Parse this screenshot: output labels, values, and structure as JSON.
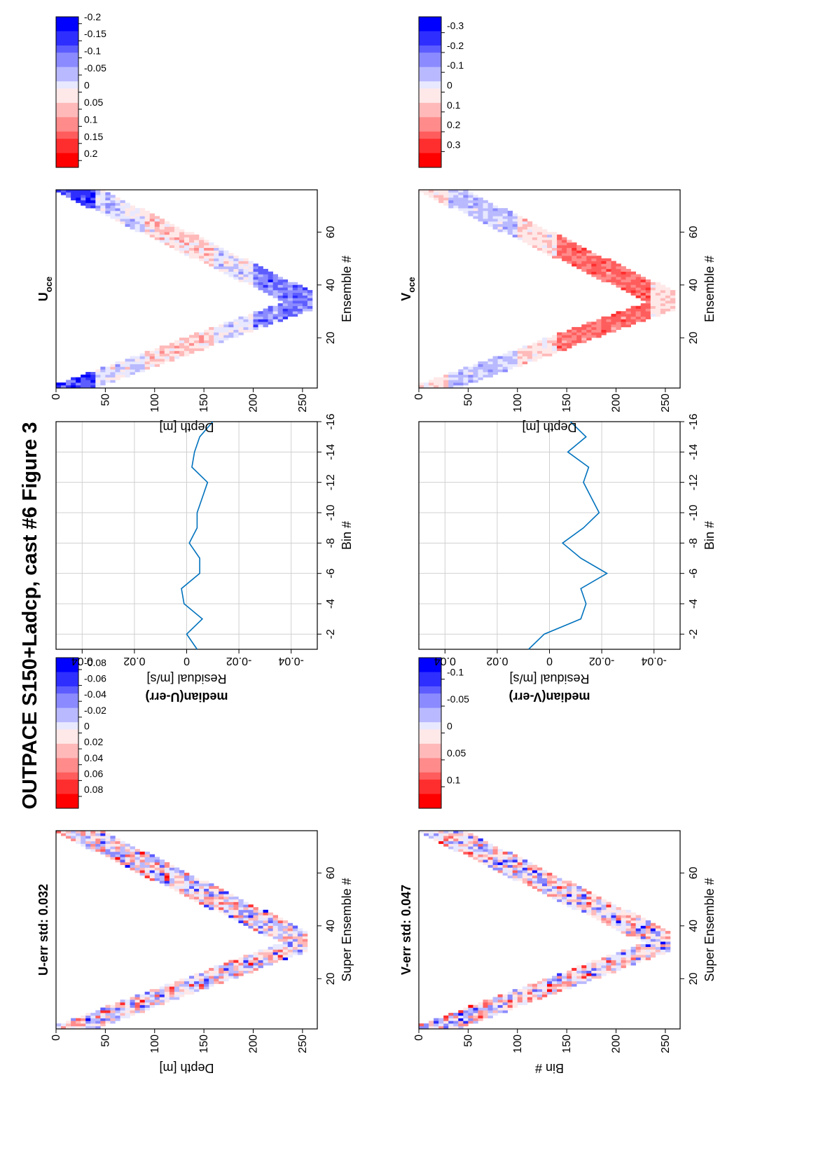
{
  "figure_title": "OUTPACE S150+Ladcp, cast #6  Figure 3",
  "chart_data": [
    {
      "id": "u_err",
      "type": "heatmap",
      "title": "U-err std: 0.032",
      "xlabel": "Super Ensemble #",
      "ylabel": "Depth [m]",
      "xlim": [
        1,
        76
      ],
      "ylim": [
        0,
        265
      ],
      "xticks": [
        "20",
        "40",
        "60"
      ],
      "yticks": [
        "0",
        "50",
        "100",
        "150",
        "200",
        "250"
      ],
      "colormap": [
        "#0000ff",
        "#ffffff",
        "#ff0000"
      ],
      "colorbar": {
        "min": -0.095,
        "max": 0.095,
        "ticks": [
          "0.08",
          "0.06",
          "0.04",
          "0.02",
          "0",
          "-0.02",
          "-0.04",
          "-0.06",
          "-0.08"
        ]
      },
      "profile": {
        "turn_ensemble": 33,
        "max_depth": 255,
        "band_width_m": 45
      },
      "pattern": "noise",
      "std": 0.032,
      "seed": 11
    },
    {
      "id": "v_err",
      "type": "heatmap",
      "title": "V-err std: 0.047",
      "xlabel": "Super Ensemble #",
      "ylabel": "Bin #",
      "xlim": [
        1,
        76
      ],
      "ylim": [
        0,
        265
      ],
      "xticks": [
        "20",
        "40",
        "60"
      ],
      "yticks": [
        "0",
        "50",
        "100",
        "150",
        "200",
        "250"
      ],
      "colormap": [
        "#0000ff",
        "#ffffff",
        "#ff0000"
      ],
      "colorbar": {
        "min": -0.14,
        "max": 0.14,
        "ticks": [
          "0.1",
          "0.05",
          "0",
          "-0.05",
          "-0.1"
        ]
      },
      "profile": {
        "turn_ensemble": 33,
        "max_depth": 255,
        "band_width_m": 45
      },
      "pattern": "noise",
      "std": 0.047,
      "seed": 23
    },
    {
      "id": "u_med",
      "type": "line",
      "title": "median(U-err)",
      "xlabel": "Residual [m/s]",
      "ylabel": "Bin #",
      "xlim": [
        -0.05,
        0.05
      ],
      "ylim": [
        -16,
        -1
      ],
      "xticks": [
        "-0.04",
        "-0.02",
        "0",
        "0.02",
        "0.04"
      ],
      "yticks": [
        "-2",
        "-4",
        "-6",
        "-8",
        "-10",
        "-12",
        "-14",
        "-16"
      ],
      "color": "#0072bd",
      "bins": [
        -1,
        -2,
        -3,
        -4,
        -5,
        -6,
        -7,
        -8,
        -9,
        -10,
        -11,
        -12,
        -13,
        -14,
        -15,
        -16
      ],
      "values": [
        -0.004,
        0.0,
        -0.006,
        0.001,
        0.002,
        -0.005,
        -0.005,
        -0.001,
        -0.004,
        -0.004,
        -0.006,
        -0.008,
        -0.002,
        -0.003,
        -0.005,
        -0.01
      ]
    },
    {
      "id": "v_med",
      "type": "line",
      "title": "median(V-err)",
      "xlabel": "Residual [m/s]",
      "ylabel": "Bin #",
      "xlim": [
        -0.05,
        0.05
      ],
      "ylim": [
        -16,
        -1
      ],
      "xticks": [
        "-0.04",
        "-0.02",
        "0",
        "0.02",
        "0.04"
      ],
      "yticks": [
        "-2",
        "-4",
        "-6",
        "-8",
        "-10",
        "-12",
        "-14",
        "-16"
      ],
      "color": "#0072bd",
      "bins": [
        -1,
        -2,
        -3,
        -4,
        -5,
        -6,
        -7,
        -8,
        -9,
        -10,
        -11,
        -12,
        -13,
        -14,
        -15,
        -16
      ],
      "values": [
        0.008,
        0.002,
        -0.012,
        -0.014,
        -0.012,
        -0.022,
        -0.012,
        -0.005,
        -0.013,
        -0.019,
        -0.016,
        -0.013,
        -0.015,
        -0.007,
        -0.014,
        -0.008
      ]
    },
    {
      "id": "u_oce",
      "type": "heatmap",
      "title": "U",
      "title_sub": "oce",
      "xlabel": "Ensemble #",
      "ylabel": "Depth [m]",
      "xlim": [
        1,
        76
      ],
      "ylim": [
        0,
        265
      ],
      "xticks": [
        "20",
        "40",
        "60"
      ],
      "yticks": [
        "0",
        "50",
        "100",
        "150",
        "200",
        "250"
      ],
      "colormap": [
        "#0000ff",
        "#ffffff",
        "#ff0000"
      ],
      "colorbar": {
        "min": -0.22,
        "max": 0.22,
        "ticks": [
          "0.2",
          "0.15",
          "0.1",
          "0.05",
          "0",
          "-0.05",
          "-0.1",
          "-0.15",
          "-0.2"
        ]
      },
      "profile": {
        "turn_ensemble": 33,
        "max_depth": 258,
        "band_width_m": 45
      },
      "pattern": "u_oce",
      "std": 0.03,
      "seed": 37
    },
    {
      "id": "v_oce",
      "type": "heatmap",
      "title": "V",
      "title_sub": "oce",
      "xlabel": "Ensemble #",
      "ylabel": "Depth [m]",
      "xlim": [
        1,
        76
      ],
      "ylim": [
        0,
        265
      ],
      "xticks": [
        "20",
        "40",
        "60"
      ],
      "yticks": [
        "0",
        "50",
        "100",
        "150",
        "200",
        "250"
      ],
      "colormap": [
        "#0000ff",
        "#ffffff",
        "#ff0000"
      ],
      "colorbar": {
        "min": -0.38,
        "max": 0.38,
        "ticks": [
          "0.3",
          "0.2",
          "0.1",
          "0",
          "-0.1",
          "-0.2",
          "-0.3"
        ]
      },
      "profile": {
        "turn_ensemble": 33,
        "max_depth": 258,
        "band_width_m": 45
      },
      "pattern": "v_oce",
      "std": 0.04,
      "seed": 53
    }
  ]
}
